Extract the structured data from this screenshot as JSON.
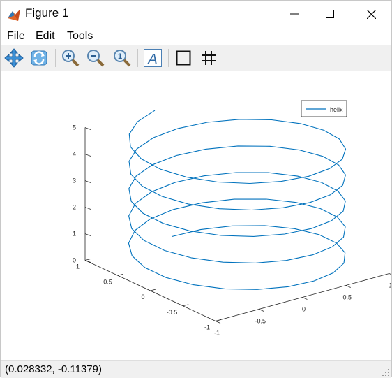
{
  "window": {
    "title": "Figure 1",
    "icon": "matlab-figure-icon",
    "controls": [
      "minimize-icon",
      "maximize-icon",
      "close-icon"
    ]
  },
  "menu": {
    "items": [
      "File",
      "Edit",
      "Tools"
    ]
  },
  "toolbar": {
    "tools": [
      "pan-icon",
      "rotate-3d-icon",
      "zoom-in-icon",
      "zoom-out-icon",
      "zoom-reset-icon",
      "insert-text-icon",
      "box-toggle-icon",
      "grid-toggle-icon"
    ],
    "text_tool_glyph": "A"
  },
  "status": {
    "text": "(0.028332, -0.11379)"
  },
  "chart_data": {
    "type": "line",
    "dimension": "3d",
    "title": "",
    "xlabel": "",
    "ylabel": "",
    "zlabel": "",
    "xlim": [
      -1,
      1
    ],
    "ylim": [
      -1,
      1
    ],
    "zlim": [
      0,
      5
    ],
    "x_ticks": [
      "-1",
      "-0.5",
      "0",
      "0.5",
      "1"
    ],
    "y_ticks": [
      "-1",
      "-0.5",
      "0",
      "0.5",
      "1"
    ],
    "z_ticks": [
      "0",
      "1",
      "2",
      "3",
      "4",
      "5"
    ],
    "grid": false,
    "legend": {
      "position": "top-right",
      "entries": [
        "helix"
      ]
    },
    "series": [
      {
        "name": "helix",
        "color": "#0072BD",
        "function": "x = sin(t), y = cos(t), z = t/(2*pi)",
        "t_range": [
          0,
          31.4
        ],
        "t_step": 0.3
      }
    ]
  }
}
